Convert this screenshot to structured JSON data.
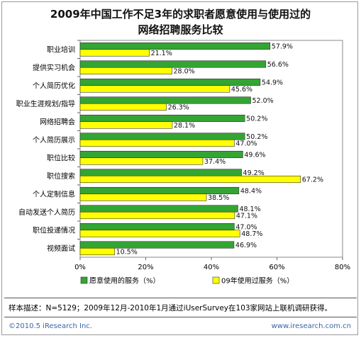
{
  "title_line1": "2009年中国工作不足3年的求职者愿意使用与使用过的",
  "title_line2": "网络招聘服务比较",
  "note": "样本描述：N=5129；2009年12月-2010年1月通过iUserSurvey在103家网站上联机调研获得。",
  "copyright": "©2010.5 iResearch Inc.",
  "website": "www.iresearch.com.cn",
  "colors": {
    "willing": "#33a532",
    "used": "#ffff00"
  },
  "chart_data": {
    "type": "bar",
    "orientation": "horizontal",
    "categories": [
      "职业培训",
      "提供实习机会",
      "个人简历优化",
      "职业生涯规划/指导",
      "网络招聘会",
      "个人简历展示",
      "职位比较",
      "职位搜索",
      "个人定制信息",
      "自动发送个人简历",
      "职位投递情况",
      "视频面试"
    ],
    "series": [
      {
        "name": "愿意使用的服务（%）",
        "values": [
          57.9,
          56.6,
          54.9,
          52.0,
          50.2,
          50.2,
          49.6,
          49.2,
          48.4,
          48.1,
          47.0,
          46.9
        ]
      },
      {
        "name": "09年使用过服务（%）",
        "values": [
          21.1,
          28.0,
          45.6,
          26.3,
          28.1,
          47.0,
          37.4,
          67.2,
          38.5,
          47.1,
          48.7,
          10.5
        ]
      }
    ],
    "value_labels": [
      [
        "57.9%",
        "56.6%",
        "54.9%",
        "52.0%",
        "50.2%",
        "50.2%",
        "49.6%",
        "49.2%",
        "48.4%",
        "48.1%",
        "47.0%",
        "46.9%"
      ],
      [
        "21.1%",
        "28.0%",
        "45.6%",
        "26.3%",
        "28.1%",
        "47.0%",
        "37.4%",
        "67.2%",
        "38.5%",
        "47.1%",
        "48.7%",
        "10.5%"
      ]
    ],
    "xticks": [
      "0%",
      "20%",
      "40%",
      "60%",
      "80%"
    ],
    "xlim": [
      0,
      80
    ],
    "legend_position": "bottom"
  }
}
